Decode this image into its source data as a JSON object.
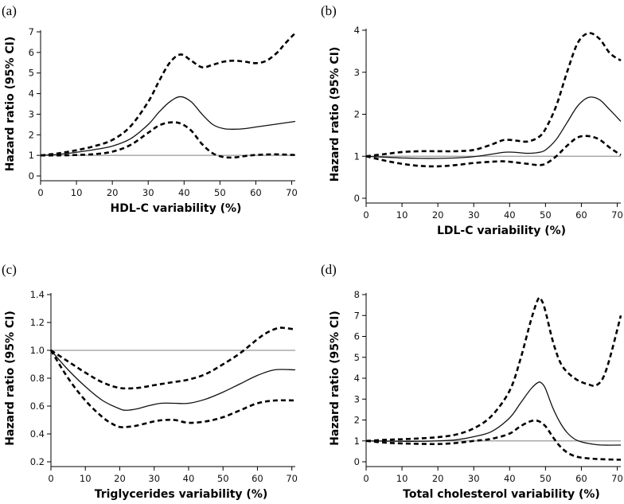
{
  "chart_data": [
    {
      "type": "line",
      "panel_label": "(a)",
      "xlabel": "HDL-C variability (%)",
      "ylabel": "Hazard ratio (95% CI)",
      "xlim": [
        0,
        71
      ],
      "ylim": [
        0,
        7
      ],
      "xticks": [
        0,
        10,
        20,
        30,
        40,
        50,
        60,
        70
      ],
      "yticks": [
        0,
        1,
        2,
        3,
        4,
        5,
        6,
        7
      ],
      "reference_line": 1,
      "series": [
        {
          "name": "estimate",
          "style": "solid",
          "x": [
            0,
            5,
            10,
            15,
            20,
            25,
            30,
            33,
            36,
            39,
            42,
            45,
            48,
            51,
            54,
            57,
            60,
            65,
            71
          ],
          "y": [
            1.0,
            1.05,
            1.15,
            1.28,
            1.45,
            1.8,
            2.5,
            3.1,
            3.6,
            3.85,
            3.6,
            3.0,
            2.5,
            2.3,
            2.27,
            2.3,
            2.38,
            2.5,
            2.65
          ]
        },
        {
          "name": "upper 95% CI",
          "style": "dashed",
          "x": [
            0,
            5,
            10,
            15,
            20,
            25,
            30,
            33,
            36,
            39,
            42,
            45,
            48,
            51,
            54,
            57,
            60,
            63,
            66,
            68,
            71
          ],
          "y": [
            1.0,
            1.1,
            1.25,
            1.45,
            1.75,
            2.4,
            3.6,
            4.6,
            5.5,
            5.9,
            5.6,
            5.28,
            5.4,
            5.55,
            5.6,
            5.55,
            5.48,
            5.6,
            6.0,
            6.4,
            6.95
          ]
        },
        {
          "name": "lower 95% CI",
          "style": "dashed",
          "x": [
            0,
            5,
            10,
            15,
            20,
            25,
            30,
            33,
            36,
            39,
            42,
            45,
            48,
            51,
            54,
            57,
            60,
            65,
            71
          ],
          "y": [
            1.0,
            1.0,
            1.02,
            1.06,
            1.18,
            1.5,
            2.1,
            2.45,
            2.6,
            2.55,
            2.2,
            1.55,
            1.1,
            0.92,
            0.9,
            0.97,
            1.02,
            1.05,
            1.02
          ]
        }
      ]
    },
    {
      "type": "line",
      "panel_label": "(b)",
      "xlabel": "LDL-C variability (%)",
      "ylabel": "Hazard ratio (95% CI)",
      "xlim": [
        0,
        71
      ],
      "ylim": [
        0,
        4
      ],
      "xticks": [
        0,
        10,
        20,
        30,
        40,
        50,
        60,
        70
      ],
      "yticks": [
        0,
        1,
        2,
        3,
        4
      ],
      "reference_line": 1,
      "series": [
        {
          "name": "estimate",
          "style": "solid",
          "x": [
            0,
            5,
            10,
            15,
            20,
            25,
            30,
            35,
            38,
            40,
            42,
            45,
            48,
            50,
            53,
            56,
            59,
            62,
            65,
            68,
            71
          ],
          "y": [
            1.0,
            0.98,
            0.96,
            0.95,
            0.95,
            0.96,
            0.99,
            1.05,
            1.09,
            1.1,
            1.09,
            1.07,
            1.09,
            1.15,
            1.4,
            1.8,
            2.2,
            2.4,
            2.35,
            2.1,
            1.83
          ]
        },
        {
          "name": "upper 95% CI",
          "style": "dashed",
          "x": [
            0,
            5,
            10,
            15,
            20,
            25,
            30,
            35,
            38,
            40,
            42,
            45,
            48,
            50,
            53,
            56,
            59,
            62,
            65,
            68,
            71
          ],
          "y": [
            1.0,
            1.05,
            1.1,
            1.12,
            1.12,
            1.12,
            1.15,
            1.28,
            1.38,
            1.39,
            1.37,
            1.35,
            1.45,
            1.65,
            2.2,
            3.0,
            3.7,
            3.93,
            3.8,
            3.45,
            3.28
          ]
        },
        {
          "name": "lower 95% CI",
          "style": "dashed",
          "x": [
            0,
            5,
            10,
            15,
            20,
            25,
            30,
            35,
            38,
            40,
            42,
            45,
            48,
            50,
            53,
            56,
            59,
            62,
            65,
            68,
            71
          ],
          "y": [
            1.0,
            0.9,
            0.82,
            0.77,
            0.76,
            0.79,
            0.84,
            0.87,
            0.88,
            0.87,
            0.85,
            0.82,
            0.79,
            0.82,
            1.0,
            1.25,
            1.45,
            1.48,
            1.4,
            1.2,
            1.03
          ]
        }
      ]
    },
    {
      "type": "line",
      "panel_label": "(c)",
      "xlabel": "Triglycerides variability (%)",
      "ylabel": "Hazard ratio (95% CI)",
      "xlim": [
        0,
        71
      ],
      "ylim": [
        0.2,
        1.4
      ],
      "xticks": [
        0,
        10,
        20,
        30,
        40,
        50,
        60,
        70
      ],
      "yticks": [
        0.2,
        0.4,
        0.6,
        0.8,
        1.0,
        1.2,
        1.4
      ],
      "reference_line": 1.0,
      "series": [
        {
          "name": "estimate",
          "style": "solid",
          "x": [
            0,
            5,
            10,
            15,
            20,
            22,
            25,
            28,
            32,
            36,
            40,
            45,
            50,
            55,
            60,
            65,
            71
          ],
          "y": [
            1.0,
            0.86,
            0.74,
            0.64,
            0.58,
            0.57,
            0.58,
            0.6,
            0.62,
            0.62,
            0.62,
            0.65,
            0.7,
            0.76,
            0.82,
            0.86,
            0.86
          ]
        },
        {
          "name": "upper 95% CI",
          "style": "dashed",
          "x": [
            0,
            5,
            10,
            15,
            20,
            25,
            30,
            35,
            40,
            45,
            50,
            55,
            60,
            63,
            66,
            68,
            71
          ],
          "y": [
            1.0,
            0.92,
            0.84,
            0.77,
            0.73,
            0.73,
            0.75,
            0.77,
            0.79,
            0.83,
            0.9,
            0.98,
            1.08,
            1.13,
            1.16,
            1.16,
            1.15
          ]
        },
        {
          "name": "lower 95% CI",
          "style": "dashed",
          "x": [
            0,
            5,
            10,
            15,
            18,
            20,
            22,
            25,
            30,
            33,
            36,
            40,
            45,
            50,
            55,
            60,
            65,
            71
          ],
          "y": [
            1.0,
            0.8,
            0.64,
            0.52,
            0.47,
            0.45,
            0.45,
            0.46,
            0.49,
            0.5,
            0.5,
            0.48,
            0.49,
            0.52,
            0.57,
            0.62,
            0.64,
            0.64
          ]
        }
      ]
    },
    {
      "type": "line",
      "panel_label": "(d)",
      "xlabel": "Total cholesterol variability (%)",
      "ylabel": "Hazard ratio (95% CI)",
      "xlim": [
        0,
        71
      ],
      "ylim": [
        0,
        8
      ],
      "xticks": [
        0,
        10,
        20,
        30,
        40,
        50,
        60,
        70
      ],
      "yticks": [
        0,
        1,
        2,
        3,
        4,
        5,
        6,
        7,
        8
      ],
      "reference_line": 1,
      "series": [
        {
          "name": "estimate",
          "style": "solid",
          "x": [
            0,
            5,
            10,
            15,
            20,
            25,
            30,
            35,
            40,
            43,
            46,
            48,
            49,
            50,
            52,
            54,
            56,
            58,
            60,
            63,
            66,
            71
          ],
          "y": [
            1.0,
            0.99,
            0.98,
            0.98,
            1.0,
            1.05,
            1.2,
            1.45,
            2.1,
            2.8,
            3.5,
            3.8,
            3.75,
            3.5,
            2.6,
            1.9,
            1.4,
            1.1,
            0.95,
            0.85,
            0.8,
            0.8
          ]
        },
        {
          "name": "upper 95% CI",
          "style": "dashed",
          "x": [
            0,
            5,
            10,
            15,
            20,
            25,
            30,
            35,
            40,
            43,
            46,
            48,
            49,
            50,
            52,
            54,
            56,
            59,
            62,
            64,
            66,
            68,
            71
          ],
          "y": [
            1.0,
            1.05,
            1.08,
            1.12,
            1.18,
            1.3,
            1.6,
            2.2,
            3.4,
            4.9,
            6.8,
            7.8,
            7.7,
            7.2,
            5.8,
            4.8,
            4.3,
            3.9,
            3.7,
            3.65,
            4.0,
            5.0,
            7.0
          ]
        },
        {
          "name": "lower 95% CI",
          "style": "dashed",
          "x": [
            0,
            5,
            10,
            15,
            20,
            25,
            30,
            35,
            40,
            43,
            46,
            48,
            50,
            52,
            54,
            56,
            58,
            60,
            63,
            66,
            71
          ],
          "y": [
            1.0,
            0.92,
            0.88,
            0.86,
            0.85,
            0.9,
            1.0,
            1.1,
            1.35,
            1.7,
            1.95,
            1.95,
            1.7,
            1.2,
            0.75,
            0.45,
            0.28,
            0.2,
            0.15,
            0.12,
            0.1
          ]
        }
      ]
    }
  ]
}
